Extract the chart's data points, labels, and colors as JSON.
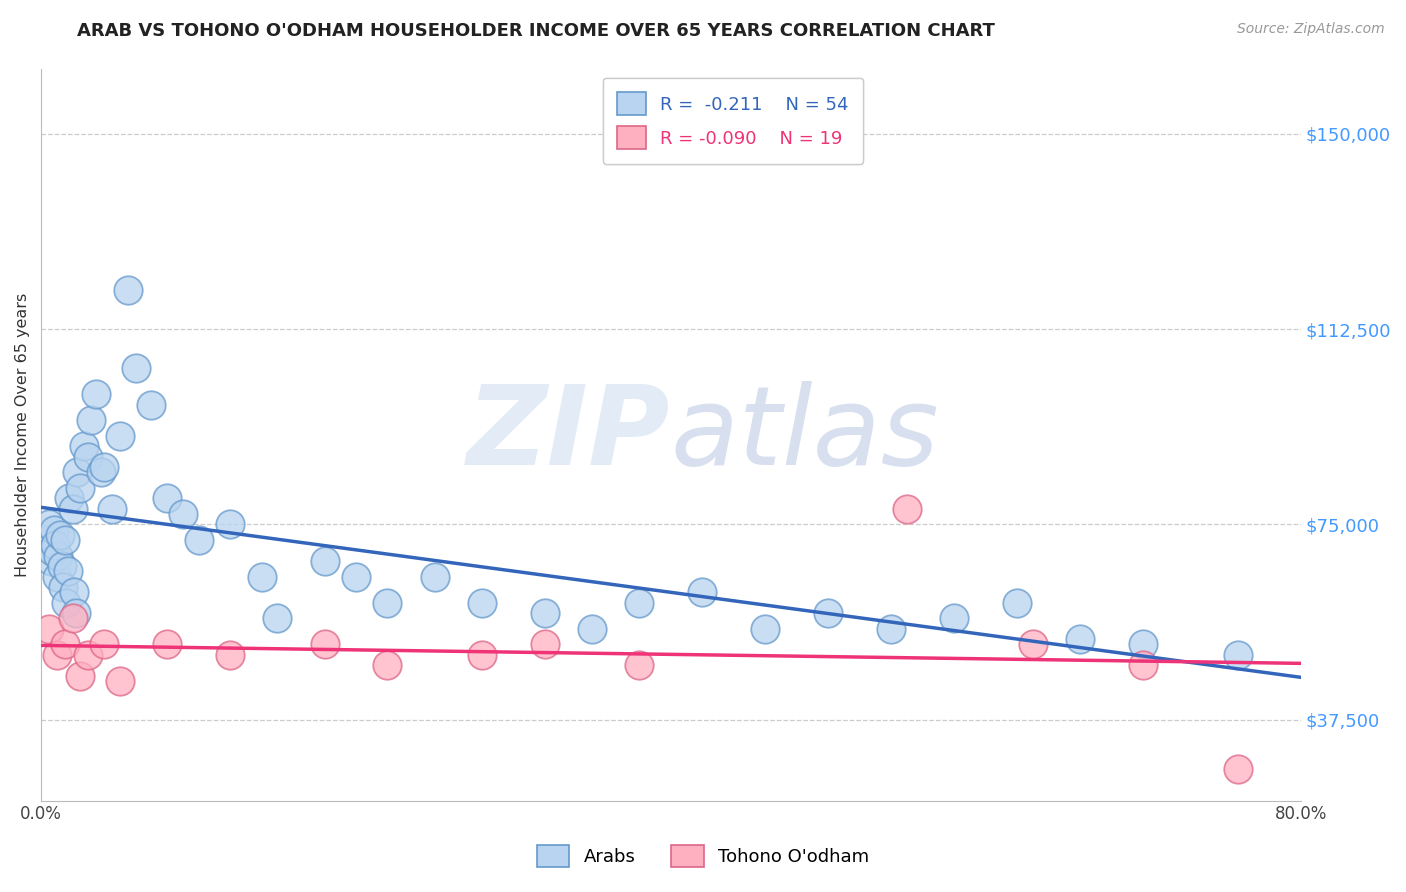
{
  "title": "ARAB VS TOHONO O'ODHAM HOUSEHOLDER INCOME OVER 65 YEARS CORRELATION CHART",
  "source": "Source: ZipAtlas.com",
  "ylabel": "Householder Income Over 65 years",
  "arab_R": -0.211,
  "arab_N": 54,
  "tohono_R": -0.09,
  "tohono_N": 19,
  "xlim": [
    0.0,
    80.0
  ],
  "ylim": [
    22000,
    162500
  ],
  "yticks": [
    37500,
    75000,
    112500,
    150000
  ],
  "ytick_labels": [
    "$37,500",
    "$75,000",
    "$112,500",
    "$150,000"
  ],
  "xtick_vals": [
    0,
    10,
    20,
    30,
    40,
    50,
    60,
    70,
    80
  ],
  "xtick_labels": [
    "0.0%",
    "",
    "",
    "",
    "",
    "",
    "",
    "",
    "80.0%"
  ],
  "arab_color": "#b8d4f0",
  "arab_edge_color": "#6699cc",
  "arab_line_color": "#3366bb",
  "tohono_color": "#ffb0c0",
  "tohono_edge_color": "#dd6688",
  "tohono_line_color": "#ee3377",
  "bg_color": "#ffffff",
  "title_color": "#222222",
  "title_fontsize": 13,
  "watermark_zip_color": "#c8ddf0",
  "watermark_atlas_color": "#b0cce8",
  "source_color": "#999999",
  "grid_color": "#cccccc",
  "arab_x": [
    0.4,
    0.5,
    0.6,
    0.7,
    0.8,
    0.9,
    1.0,
    1.1,
    1.2,
    1.3,
    1.4,
    1.5,
    1.6,
    1.7,
    1.8,
    2.0,
    2.1,
    2.2,
    2.3,
    2.5,
    2.7,
    3.0,
    3.2,
    3.5,
    3.8,
    4.0,
    4.5,
    5.0,
    5.5,
    6.0,
    7.0,
    8.0,
    9.0,
    10.0,
    12.0,
    14.0,
    15.0,
    18.0,
    20.0,
    22.0,
    25.0,
    28.0,
    32.0,
    35.0,
    38.0,
    42.0,
    46.0,
    50.0,
    54.0,
    58.0,
    62.0,
    66.0,
    70.0,
    76.0
  ],
  "arab_y": [
    72000,
    75000,
    68000,
    70000,
    74000,
    71000,
    65000,
    69000,
    73000,
    67000,
    63000,
    72000,
    60000,
    66000,
    80000,
    78000,
    62000,
    58000,
    85000,
    82000,
    90000,
    88000,
    95000,
    100000,
    85000,
    86000,
    78000,
    92000,
    120000,
    105000,
    98000,
    80000,
    77000,
    72000,
    75000,
    65000,
    57000,
    68000,
    65000,
    60000,
    65000,
    60000,
    58000,
    55000,
    60000,
    62000,
    55000,
    58000,
    55000,
    57000,
    60000,
    53000,
    52000,
    50000
  ],
  "tohono_x": [
    0.5,
    1.0,
    1.5,
    2.0,
    2.5,
    3.0,
    4.0,
    5.0,
    8.0,
    12.0,
    18.0,
    22.0,
    28.0,
    32.0,
    38.0,
    55.0,
    63.0,
    70.0,
    76.0
  ],
  "tohono_y": [
    55000,
    50000,
    52000,
    57000,
    46000,
    50000,
    52000,
    45000,
    52000,
    50000,
    52000,
    48000,
    50000,
    52000,
    48000,
    78000,
    52000,
    48000,
    28000
  ]
}
